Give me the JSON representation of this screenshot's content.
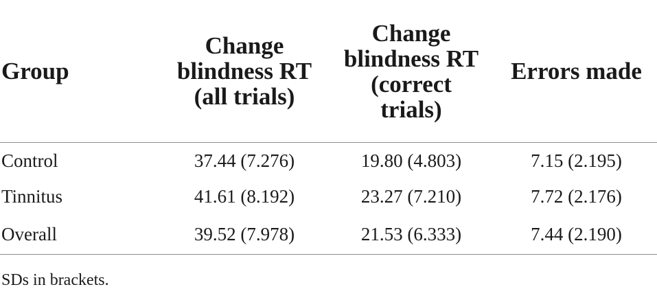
{
  "table": {
    "headers": [
      [
        "Group"
      ],
      [
        "Change",
        "blindness RT",
        "(all trials)"
      ],
      [
        "Change",
        "blindness RT",
        "(correct",
        "trials)"
      ],
      [
        "Errors made"
      ]
    ],
    "rows": [
      [
        "Control",
        "37.44 (7.276)",
        "19.80 (4.803)",
        "7.15 (2.195)"
      ],
      [
        "Tinnitus",
        "41.61 (8.192)",
        "23.27 (7.210)",
        "7.72 (2.176)"
      ],
      [
        "Overall",
        "39.52 (7.978)",
        "21.53 (6.333)",
        "7.44 (2.190)"
      ]
    ]
  },
  "footnote": "SDs in brackets."
}
